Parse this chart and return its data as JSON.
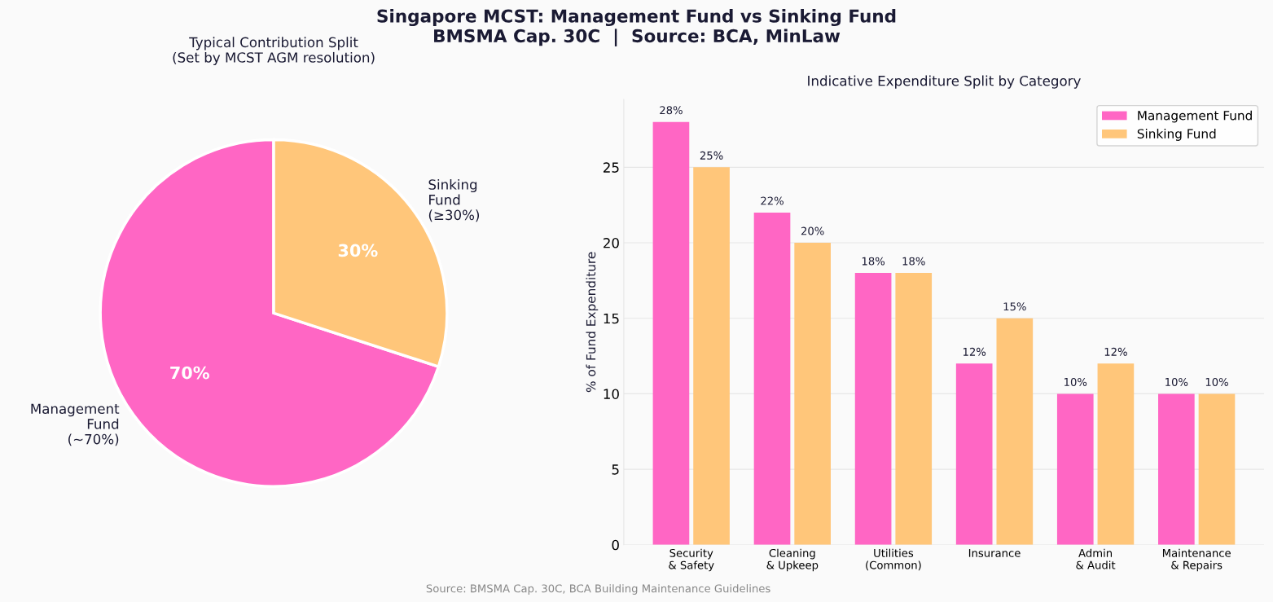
{
  "chart_data": [
    {
      "type": "pie",
      "title": "Typical Contribution Split\n(Set by MCST AGM resolution)",
      "categories": [
        "Management\nFund\n(~70%)",
        "Sinking\nFund\n(≥30%)"
      ],
      "values": [
        70,
        30
      ],
      "colors": [
        "#ff66c4",
        "#ffc67a"
      ],
      "value_labels": [
        "70%",
        "30%"
      ],
      "annotations": [
        "Singapore MCST: Management Fund vs Sinking Fund\nBMSMA Cap. 30C  |  Source: BCA, MinLaw"
      ]
    },
    {
      "type": "bar",
      "title": "Indicative Expenditure Split by Category",
      "ylabel": "% of Fund Expenditure",
      "categories": [
        "Security\n& Safety",
        "Cleaning\n& Upkeep",
        "Utilities\n(Common)",
        "Insurance",
        "Admin\n& Audit",
        "Maintenance\n& Repairs"
      ],
      "series": [
        {
          "name": "Management Fund",
          "color": "#ff66c4",
          "values": [
            28,
            22,
            18,
            12,
            10,
            10
          ],
          "value_labels": [
            "28%",
            "22%",
            "18%",
            "12%",
            "10%",
            "10%"
          ]
        },
        {
          "name": "Sinking Fund",
          "color": "#ffc67a",
          "values": [
            25,
            20,
            18,
            15,
            12,
            10
          ],
          "value_labels": [
            "25%",
            "20%",
            "18%",
            "15%",
            "12%",
            "10%"
          ]
        }
      ],
      "ylim": [
        0,
        29.5
      ],
      "yticks": [
        0,
        5,
        10,
        15,
        20,
        25
      ],
      "grid": "y",
      "legend": "top right",
      "annotations": [
        "Source: BMSMA Cap. 30C, BCA Building Maintenance Guidelines"
      ]
    }
  ]
}
